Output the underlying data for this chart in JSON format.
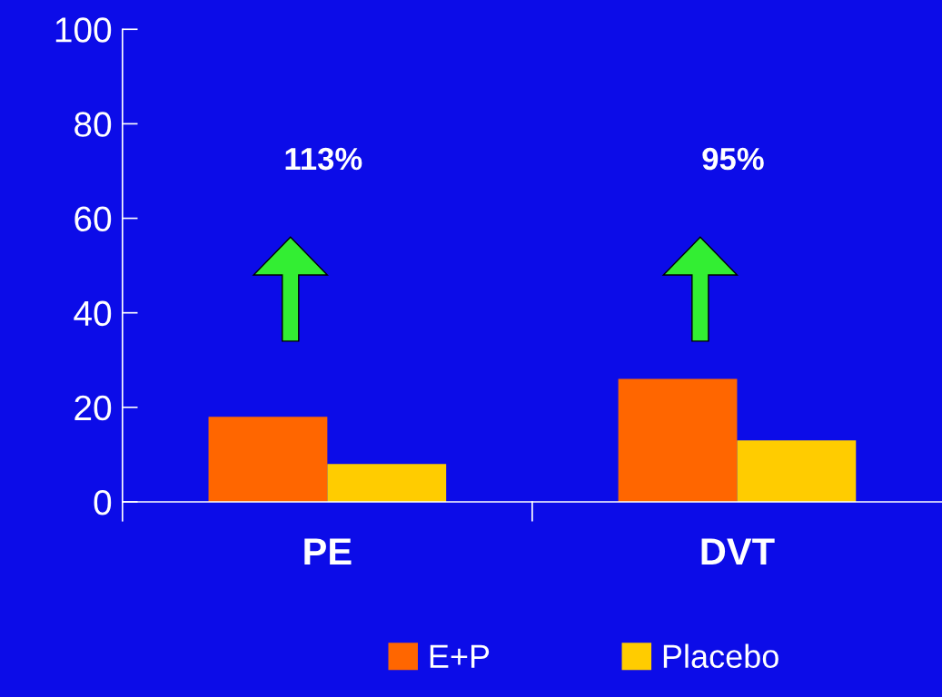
{
  "chart_data": {
    "type": "bar",
    "categories": [
      "PE",
      "DVT"
    ],
    "series": [
      {
        "name": "E+P",
        "color": "#ff6600",
        "values": [
          18,
          26
        ]
      },
      {
        "name": "Placebo",
        "color": "#ffcc00",
        "values": [
          8,
          13
        ]
      }
    ],
    "ylim": [
      0,
      100
    ],
    "yticks": [
      0,
      20,
      40,
      60,
      80,
      100
    ],
    "grid": false,
    "legend": "bottom",
    "annotations": [
      "113%",
      "95%"
    ]
  }
}
